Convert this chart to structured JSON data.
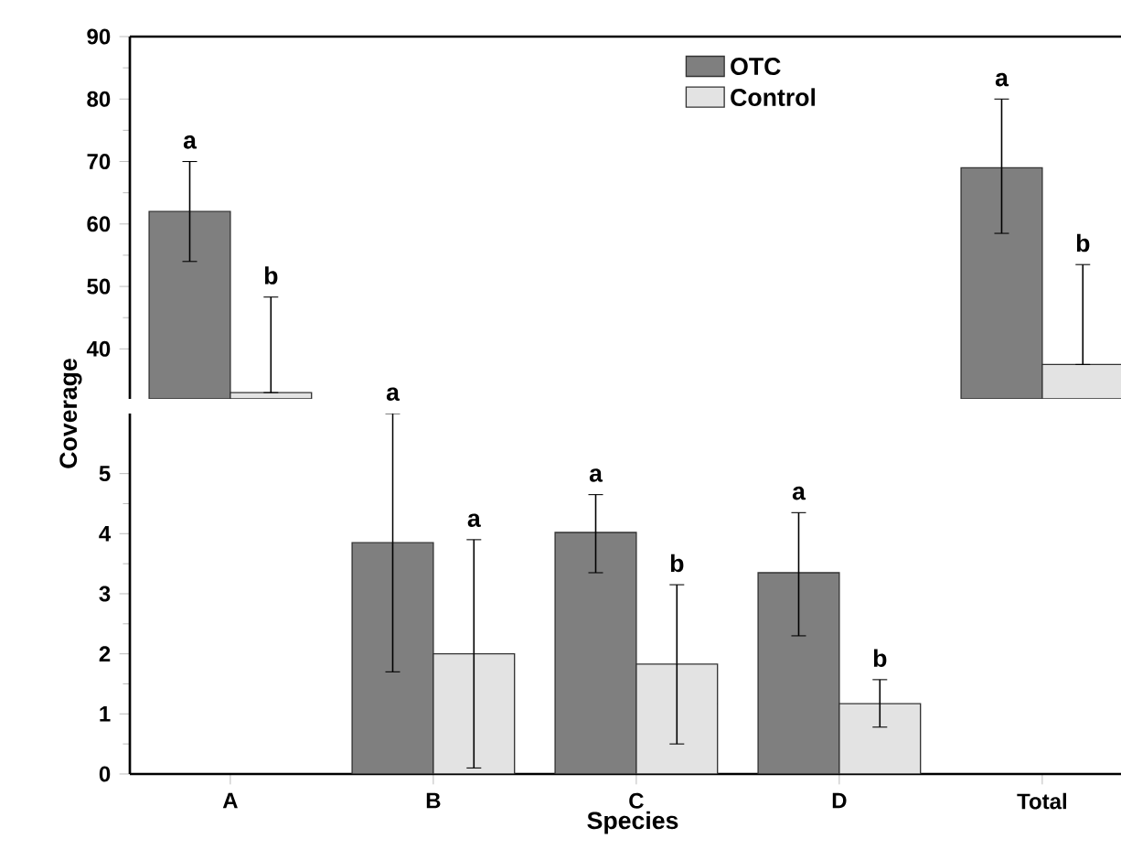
{
  "chart_data": [
    {
      "type": "bar",
      "categories": [
        null,
        null,
        null,
        null,
        null
      ],
      "ylim": [
        32,
        90
      ],
      "yticks": [
        40,
        50,
        60,
        70,
        80,
        90
      ],
      "tick_labels": "y",
      "legend": "top",
      "series": [
        {
          "name": "OTC",
          "color": "#7f7f7f",
          "values": [
            62,
            null,
            null,
            null,
            69
          ],
          "errors": [
            8,
            null,
            null,
            null,
            [
              58.5,
              80
            ]
          ]
        },
        {
          "name": "Control",
          "color": "#e3e3e3",
          "values": [
            33,
            null,
            null,
            null,
            37.5
          ],
          "errors": [
            [
              33,
              48.3
            ],
            null,
            null,
            null,
            [
              37.5,
              53.5
            ]
          ]
        }
      ],
      "annotations": [
        "a",
        "b",
        "a",
        "b"
      ]
    },
    {
      "type": "bar",
      "categories": [
        "A",
        "B",
        "C",
        "D",
        "Total"
      ],
      "ylim": [
        0,
        6
      ],
      "yticks": [
        0,
        1,
        2,
        3,
        4,
        5
      ],
      "xlabel": "Species",
      "ylabel": "Coverage",
      "series": [
        {
          "color": "#7f7f7f",
          "values": [
            null,
            3.85,
            4.02,
            3.35,
            null
          ],
          "errors": [
            null,
            [
              1.7,
              6.0
            ],
            [
              3.35,
              4.65
            ],
            [
              2.3,
              4.35
            ],
            null
          ]
        },
        {
          "color": "#e3e3e3",
          "values": [
            null,
            2.0,
            1.83,
            1.17,
            null
          ],
          "errors": [
            null,
            [
              0.1,
              3.9
            ],
            [
              0.5,
              3.15
            ],
            [
              0.78,
              1.57
            ],
            null
          ]
        }
      ],
      "annotations": [
        "a",
        "a",
        "a",
        "b",
        "a",
        "b"
      ]
    }
  ]
}
